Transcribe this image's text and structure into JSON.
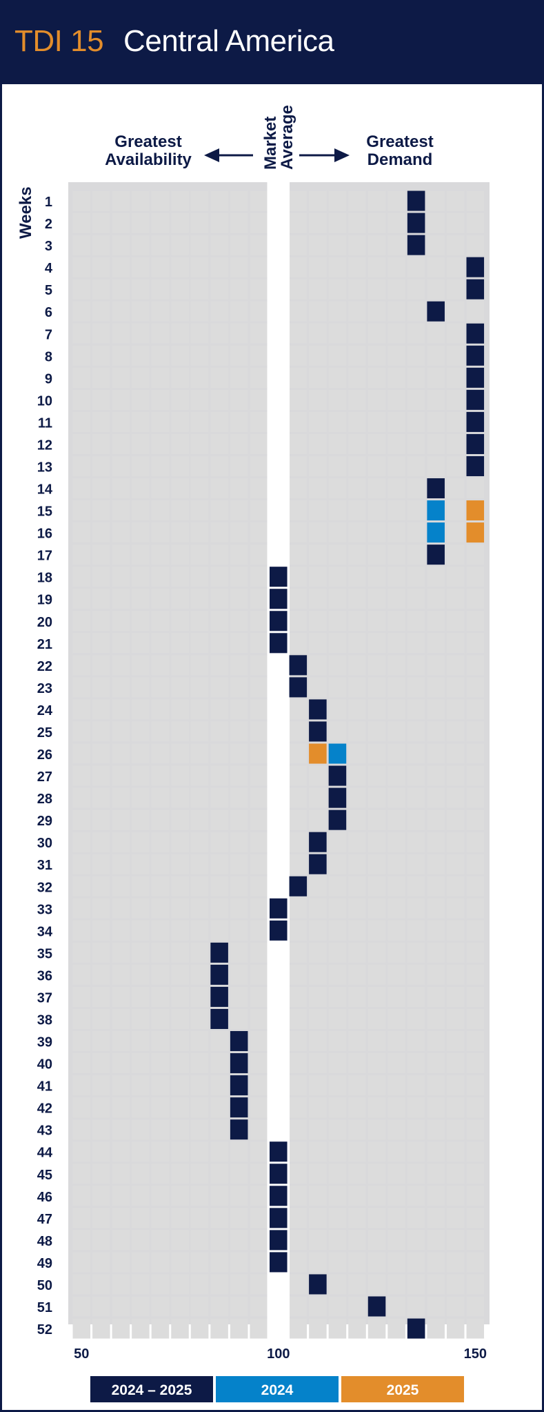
{
  "header": {
    "tag": "TDI 15",
    "title": "Central America"
  },
  "labels": {
    "left_line1": "Greatest",
    "left_line2": "Availability",
    "right_line1": "Greatest",
    "right_line2": "Demand",
    "center_line1": "Market",
    "center_line2": "Average",
    "weeks_label": "Weeks"
  },
  "chart_data": {
    "type": "heatmap",
    "x_axis_ticks": [
      "50",
      "100",
      "150"
    ],
    "xlim": [
      50,
      150
    ],
    "x_step": 5,
    "market_average": 100,
    "weeks": [
      "1",
      "2",
      "3",
      "4",
      "5",
      "6",
      "7",
      "8",
      "9",
      "10",
      "11",
      "12",
      "13",
      "14",
      "15",
      "16",
      "17",
      "18",
      "19",
      "20",
      "21",
      "22",
      "23",
      "24",
      "25",
      "26",
      "27",
      "28",
      "29",
      "30",
      "31",
      "32",
      "33",
      "34",
      "35",
      "36",
      "37",
      "38",
      "39",
      "40",
      "41",
      "42",
      "43",
      "44",
      "45",
      "46",
      "47",
      "48",
      "49",
      "50",
      "51",
      "52"
    ],
    "series": [
      {
        "name": "2024 – 2025",
        "color": "#0d1a46",
        "values": [
          135,
          135,
          135,
          150,
          150,
          140,
          150,
          150,
          150,
          150,
          150,
          150,
          150,
          140,
          null,
          null,
          140,
          100,
          100,
          100,
          100,
          105,
          105,
          110,
          110,
          null,
          115,
          115,
          115,
          110,
          110,
          105,
          100,
          100,
          85,
          85,
          85,
          85,
          90,
          90,
          90,
          90,
          90,
          100,
          100,
          100,
          100,
          100,
          100,
          110,
          125,
          135
        ]
      },
      {
        "name": "2024",
        "color": "#0582ca",
        "values": [
          null,
          null,
          null,
          null,
          null,
          null,
          null,
          null,
          null,
          null,
          null,
          null,
          null,
          null,
          140,
          140,
          null,
          null,
          null,
          null,
          null,
          null,
          null,
          null,
          null,
          115,
          null,
          null,
          null,
          null,
          null,
          null,
          null,
          null,
          null,
          null,
          null,
          null,
          null,
          null,
          null,
          null,
          null,
          null,
          null,
          null,
          null,
          null,
          null,
          null,
          null,
          null
        ]
      },
      {
        "name": "2025",
        "color": "#e38d2b",
        "values": [
          null,
          null,
          null,
          null,
          null,
          null,
          null,
          null,
          null,
          null,
          null,
          null,
          null,
          null,
          150,
          150,
          null,
          null,
          null,
          null,
          null,
          null,
          null,
          null,
          null,
          110,
          null,
          null,
          null,
          null,
          null,
          null,
          null,
          null,
          null,
          null,
          null,
          null,
          null,
          null,
          null,
          null,
          null,
          null,
          null,
          null,
          null,
          null,
          null,
          null,
          null,
          null
        ]
      }
    ]
  }
}
